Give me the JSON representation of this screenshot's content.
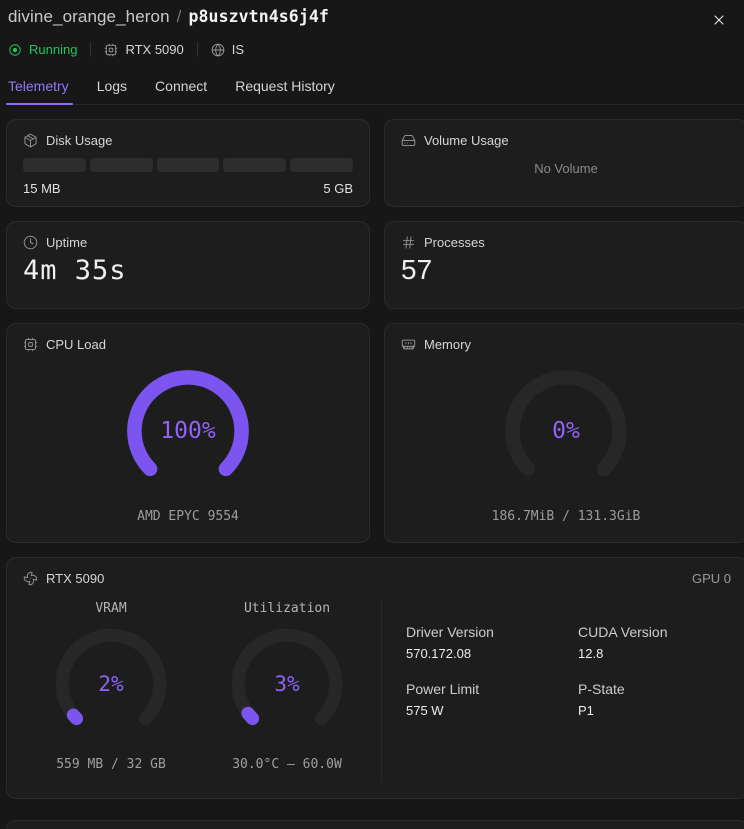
{
  "header": {
    "instance_name": "divine_orange_heron",
    "separator": "/",
    "instance_id": "p8uszvtn4s6j4f",
    "status_label": "Running",
    "gpu_chip": "RTX 5090",
    "region": "IS"
  },
  "tabs": [
    {
      "label": "Telemetry",
      "active": true
    },
    {
      "label": "Logs",
      "active": false
    },
    {
      "label": "Connect",
      "active": false
    },
    {
      "label": "Request History",
      "active": false
    }
  ],
  "cards": {
    "disk": {
      "title": "Disk Usage",
      "used": "15 MB",
      "total": "5 GB",
      "segments": 5,
      "filled_segments": 0
    },
    "volume": {
      "title": "Volume Usage",
      "empty_text": "No Volume"
    },
    "uptime": {
      "title": "Uptime",
      "value": "4m 35s"
    },
    "processes": {
      "title": "Processes",
      "value": "57"
    },
    "cpu": {
      "title": "CPU Load",
      "percent": 100,
      "percent_label": "100%",
      "subtitle": "AMD EPYC 9554"
    },
    "memory": {
      "percent": 0,
      "title": "Memory",
      "percent_label": "0%",
      "subtitle": "186.7MiB / 131.3GiB"
    },
    "gpu": {
      "title": "RTX 5090",
      "badge": "GPU 0",
      "gauges": [
        {
          "label": "VRAM",
          "percent": 2,
          "percent_label": "2%",
          "caption": "559 MB / 32 GB"
        },
        {
          "label": "Utilization",
          "percent": 3,
          "percent_label": "3%",
          "caption": "30.0°C — 60.0W"
        }
      ],
      "info": [
        {
          "label": "Driver Version",
          "value": "570.172.08"
        },
        {
          "label": "CUDA Version",
          "value": "12.8"
        },
        {
          "label": "Power Limit",
          "value": "575 W"
        },
        {
          "label": "P-State",
          "value": "P1"
        }
      ]
    }
  },
  "colors": {
    "accent": "#7c55f0",
    "accent_text": "#8e63f6",
    "green": "#22c55e"
  }
}
